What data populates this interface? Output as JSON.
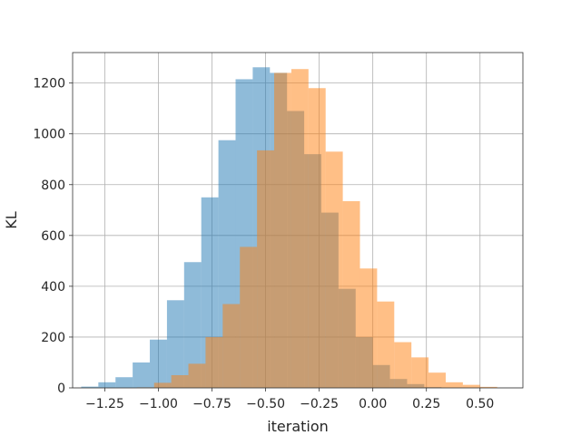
{
  "chart_data": {
    "type": "bar",
    "title": "",
    "xlabel": "iteration",
    "ylabel": "KL",
    "xlim": [
      -1.4,
      0.7
    ],
    "ylim": [
      0,
      1320
    ],
    "grid": true,
    "xticks": [
      -1.25,
      -1.0,
      -0.75,
      -0.5,
      -0.25,
      0.0,
      0.25,
      0.5
    ],
    "xtick_labels": [
      "−1.25",
      "−1.00",
      "−0.75",
      "−0.50",
      "−0.25",
      "0.00",
      "0.25",
      "0.50"
    ],
    "yticks": [
      0,
      200,
      400,
      600,
      800,
      1000,
      1200
    ],
    "ytick_labels": [
      "0",
      "200",
      "400",
      "600",
      "800",
      "1000",
      "1200"
    ],
    "series": [
      {
        "color": "#1f77b4",
        "opacity": 0.5,
        "bins": [
          [
            -1.36,
            -1.28,
            5
          ],
          [
            -1.28,
            -1.2,
            22
          ],
          [
            -1.2,
            -1.12,
            42
          ],
          [
            -1.12,
            -1.04,
            100
          ],
          [
            -1.04,
            -0.96,
            190
          ],
          [
            -0.96,
            -0.88,
            345
          ],
          [
            -0.88,
            -0.8,
            495
          ],
          [
            -0.8,
            -0.72,
            750
          ],
          [
            -0.72,
            -0.64,
            975
          ],
          [
            -0.64,
            -0.56,
            1215
          ],
          [
            -0.56,
            -0.48,
            1262
          ],
          [
            -0.48,
            -0.4,
            1240
          ],
          [
            -0.4,
            -0.32,
            1090
          ],
          [
            -0.32,
            -0.24,
            920
          ],
          [
            -0.24,
            -0.16,
            690
          ],
          [
            -0.16,
            -0.08,
            390
          ],
          [
            -0.08,
            0.0,
            200
          ],
          [
            0.0,
            0.08,
            90
          ],
          [
            0.08,
            0.16,
            35
          ],
          [
            0.16,
            0.24,
            15
          ],
          [
            0.24,
            0.32,
            3
          ]
        ]
      },
      {
        "color": "#ff7f0e",
        "opacity": 0.5,
        "bins": [
          [
            -1.1,
            -1.02,
            2
          ],
          [
            -1.02,
            -0.94,
            20
          ],
          [
            -0.94,
            -0.86,
            50
          ],
          [
            -0.86,
            -0.78,
            95
          ],
          [
            -0.78,
            -0.7,
            200
          ],
          [
            -0.7,
            -0.62,
            330
          ],
          [
            -0.62,
            -0.54,
            555
          ],
          [
            -0.54,
            -0.46,
            935
          ],
          [
            -0.46,
            -0.38,
            1240
          ],
          [
            -0.38,
            -0.3,
            1255
          ],
          [
            -0.3,
            -0.22,
            1180
          ],
          [
            -0.22,
            -0.14,
            930
          ],
          [
            -0.14,
            -0.06,
            735
          ],
          [
            -0.06,
            0.02,
            470
          ],
          [
            0.02,
            0.1,
            340
          ],
          [
            0.1,
            0.18,
            180
          ],
          [
            0.18,
            0.26,
            120
          ],
          [
            0.26,
            0.34,
            60
          ],
          [
            0.34,
            0.42,
            22
          ],
          [
            0.42,
            0.5,
            12
          ],
          [
            0.5,
            0.58,
            4
          ]
        ]
      }
    ]
  }
}
